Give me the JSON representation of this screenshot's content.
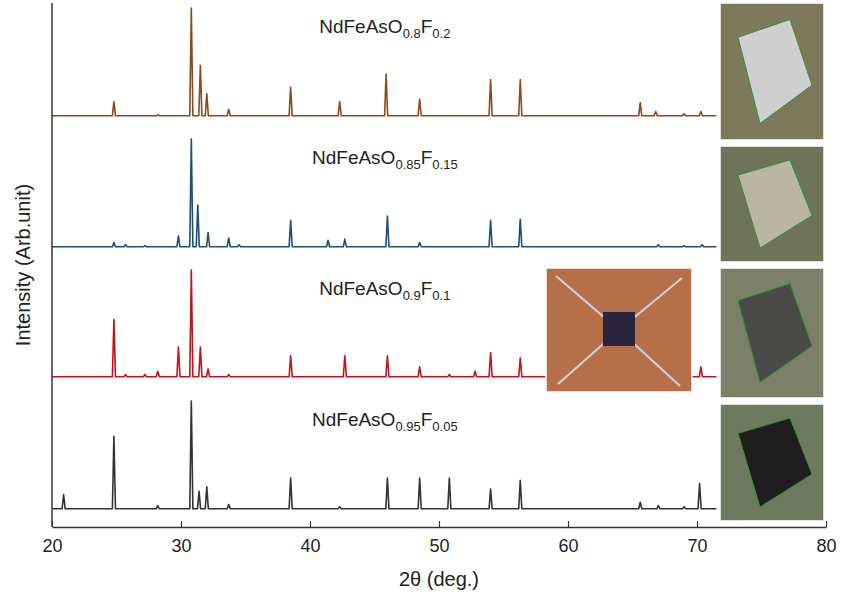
{
  "chart_data": [
    {
      "type": "line",
      "xlim": [
        20,
        80
      ],
      "ylim": [
        0,
        100
      ],
      "tick_labels": false,
      "series": [
        {
          "name": "NdFeAsO0.8F0.2",
          "color": "#8c4a1c",
          "x": [
            20,
            24.68,
            24.8,
            24.92,
            28.08,
            28.2,
            28.32,
            30.68,
            30.8,
            30.92,
            31.38,
            31.5,
            31.62,
            31.88,
            32.0,
            32.12,
            33.58,
            33.7,
            33.82,
            38.38,
            38.5,
            38.62,
            42.18,
            42.3,
            42.42,
            45.78,
            45.9,
            46.02,
            48.38,
            48.5,
            48.62,
            53.88,
            54.0,
            54.12,
            56.18,
            56.3,
            56.42,
            65.48,
            65.6,
            65.72,
            66.68,
            66.8,
            66.92,
            68.88,
            69.0,
            69.12,
            70.18,
            70.3,
            70.42,
            71.5
          ],
          "values": [
            2,
            2,
            15,
            2,
            2,
            3,
            2,
            2,
            100,
            2,
            2,
            48,
            2,
            2,
            22,
            2,
            2,
            8,
            2,
            2,
            28,
            2,
            2,
            15,
            2,
            2,
            40,
            2,
            2,
            17,
            2,
            2,
            35,
            2,
            2,
            35,
            2,
            2,
            14,
            2,
            2,
            6,
            2,
            2,
            4,
            2,
            2,
            6,
            2,
            2
          ]
        }
      ]
    },
    {
      "type": "line",
      "xlim": [
        20,
        80
      ],
      "ylim": [
        0,
        100
      ],
      "tick_labels": false,
      "series": [
        {
          "name": "NdFeAsO0.85F0.15",
          "color": "#1f4e79",
          "x": [
            20,
            24.68,
            24.8,
            24.92,
            25.58,
            25.7,
            25.82,
            27.08,
            27.2,
            27.32,
            29.68,
            29.8,
            29.92,
            30.68,
            30.8,
            30.92,
            31.18,
            31.3,
            31.42,
            31.98,
            32.1,
            32.22,
            33.58,
            33.7,
            33.82,
            34.38,
            34.5,
            34.62,
            38.38,
            38.5,
            38.62,
            41.28,
            41.4,
            41.52,
            42.58,
            42.7,
            42.82,
            45.88,
            46.0,
            46.12,
            48.38,
            48.5,
            48.62,
            53.88,
            54.0,
            54.12,
            56.18,
            56.3,
            56.42,
            66.88,
            67.0,
            67.12,
            68.88,
            69.0,
            69.12,
            70.28,
            70.4,
            70.52,
            71.5
          ],
          "values": [
            2,
            2,
            6,
            2,
            2,
            4,
            2,
            2,
            3,
            2,
            2,
            12,
            2,
            2,
            100,
            2,
            2,
            40,
            2,
            2,
            15,
            2,
            2,
            10,
            2,
            2,
            4,
            2,
            2,
            26,
            2,
            2,
            8,
            2,
            2,
            9,
            2,
            2,
            30,
            2,
            2,
            6,
            2,
            2,
            26,
            2,
            2,
            27,
            2,
            2,
            4,
            2,
            2,
            3,
            2,
            2,
            4,
            2,
            2
          ]
        }
      ]
    },
    {
      "type": "line",
      "xlim": [
        20,
        80
      ],
      "ylim": [
        0,
        100
      ],
      "tick_labels": false,
      "series": [
        {
          "name": "NdFeAsO0.9F0.1",
          "color": "#c0141c",
          "x": [
            20,
            24.68,
            24.8,
            24.92,
            25.58,
            25.7,
            25.82,
            27.08,
            27.2,
            27.32,
            28.08,
            28.2,
            28.32,
            29.68,
            29.8,
            29.92,
            30.68,
            30.8,
            30.92,
            31.38,
            31.5,
            31.62,
            31.98,
            32.1,
            32.22,
            33.58,
            33.7,
            33.82,
            38.38,
            38.5,
            38.62,
            42.58,
            42.7,
            42.82,
            45.88,
            46.0,
            46.12,
            48.38,
            48.5,
            48.62,
            50.68,
            50.8,
            50.92,
            52.68,
            52.8,
            52.92,
            53.88,
            54.0,
            54.12,
            56.18,
            56.3,
            56.42,
            70.18,
            70.3,
            70.42,
            71.5
          ],
          "values": [
            3,
            3,
            55,
            3,
            3,
            5,
            3,
            3,
            5,
            3,
            3,
            8,
            3,
            3,
            30,
            3,
            3,
            100,
            3,
            3,
            30,
            3,
            3,
            10,
            3,
            3,
            5,
            3,
            3,
            22,
            3,
            3,
            22,
            3,
            3,
            22,
            3,
            3,
            12,
            3,
            3,
            5,
            3,
            3,
            8,
            3,
            3,
            25,
            3,
            3,
            20,
            3,
            3,
            12,
            3,
            3
          ]
        }
      ]
    },
    {
      "type": "line",
      "xlim": [
        20,
        80
      ],
      "ylim": [
        0,
        100
      ],
      "tick_labels": "x",
      "xticks": [
        20,
        30,
        40,
        50,
        60,
        70,
        80
      ],
      "x_label": "2θ (deg.)",
      "y_label": "Intensity (Arb.unit)",
      "series": [
        {
          "name": "NdFeAsO0.95F0.05",
          "color": "#333333",
          "x": [
            20,
            20.78,
            20.9,
            21.02,
            24.68,
            24.8,
            24.92,
            28.08,
            28.2,
            28.32,
            30.68,
            30.8,
            30.92,
            31.28,
            31.4,
            31.52,
            31.88,
            32.0,
            32.12,
            33.58,
            33.7,
            33.82,
            38.38,
            38.5,
            38.62,
            42.18,
            42.3,
            42.42,
            45.88,
            46.0,
            46.12,
            48.38,
            48.5,
            48.62,
            50.68,
            50.8,
            50.92,
            53.88,
            54.0,
            54.12,
            56.18,
            56.3,
            56.42,
            65.48,
            65.6,
            65.72,
            66.88,
            67.0,
            67.12,
            68.88,
            69.0,
            69.12,
            70.08,
            70.2,
            70.32,
            71.5
          ],
          "values": [
            2,
            2,
            15,
            2,
            2,
            68,
            2,
            2,
            5,
            2,
            2,
            100,
            2,
            2,
            18,
            2,
            2,
            22,
            2,
            2,
            6,
            2,
            2,
            30,
            2,
            2,
            4,
            2,
            2,
            30,
            2,
            2,
            30,
            2,
            2,
            30,
            2,
            2,
            20,
            2,
            2,
            28,
            2,
            2,
            8,
            2,
            2,
            5,
            2,
            2,
            4,
            2,
            2,
            25,
            2,
            2
          ]
        }
      ]
    }
  ]
}
